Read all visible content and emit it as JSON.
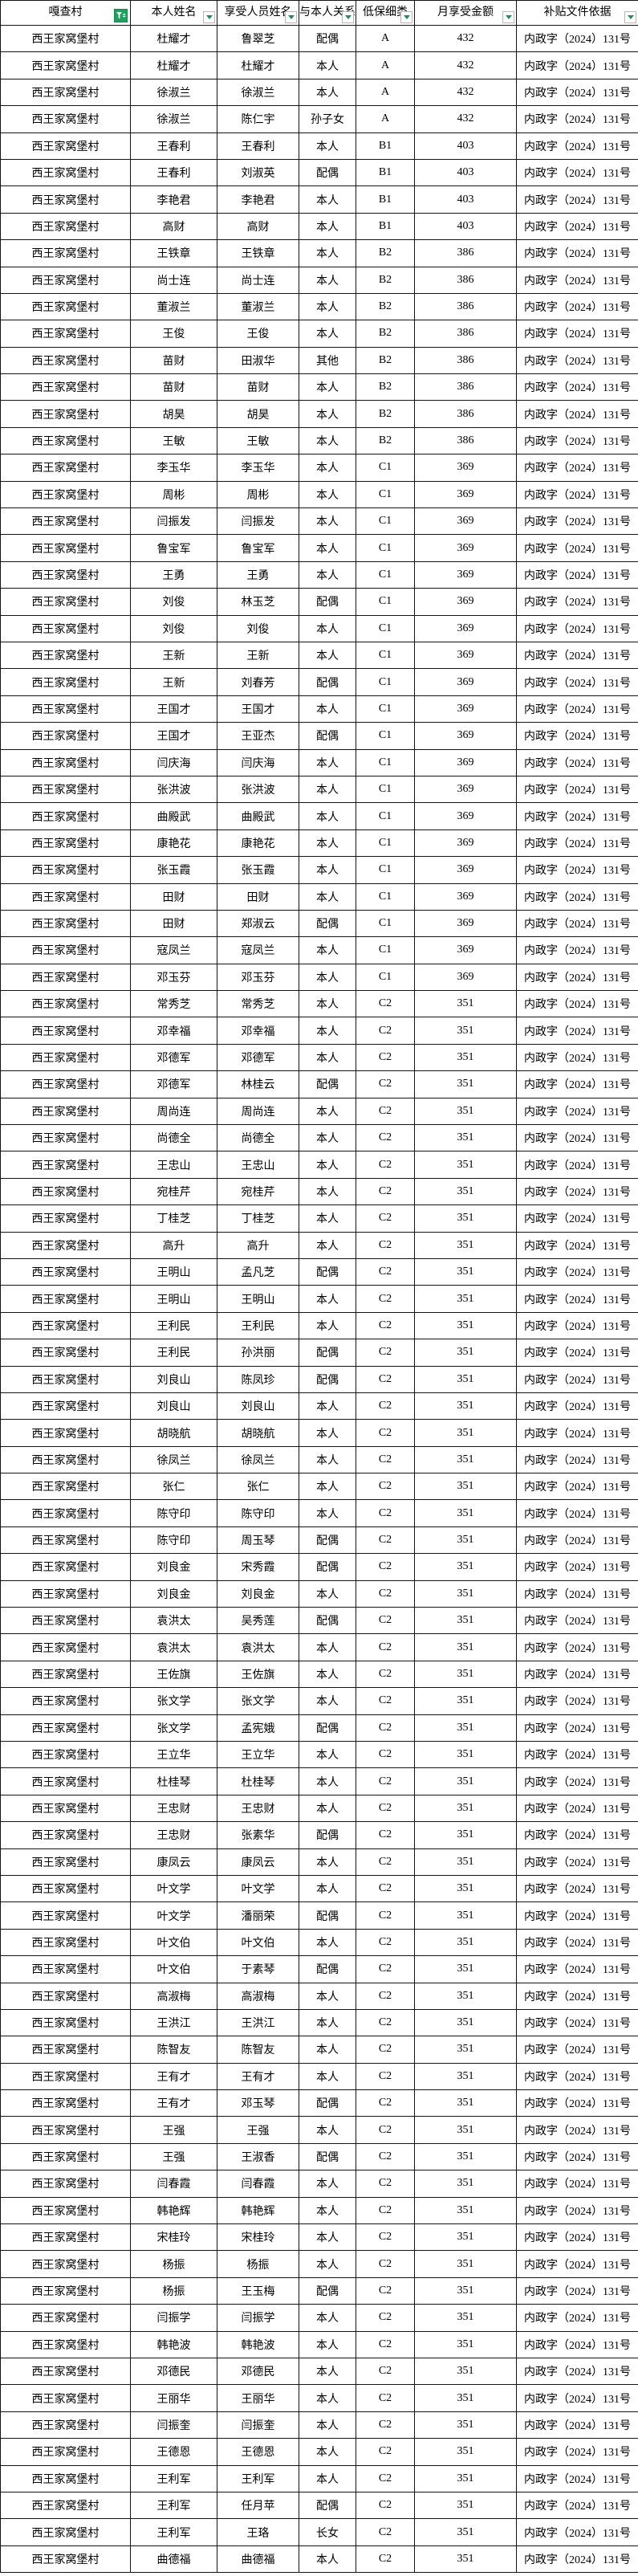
{
  "header": {
    "columns": [
      {
        "label": "嘎查村",
        "filter": "applied"
      },
      {
        "label": "本人姓名",
        "filter": "dropdown"
      },
      {
        "label": "享受人员姓名",
        "filter": "dropdown"
      },
      {
        "label": "与本人关系",
        "filter": "dropdown"
      },
      {
        "label": "低保细类",
        "filter": "dropdown"
      },
      {
        "label": "月享受金额",
        "filter": "dropdown"
      },
      {
        "label": "补贴文件依据",
        "filter": "dropdown"
      }
    ]
  },
  "icons": {
    "applied_filter": "funnel-icon",
    "dropdown": "chevron-down-icon"
  },
  "colors": {
    "filter_active_bg": "#1ea15e",
    "filter_arrow_green": "#1e8f57",
    "grid_line": "#141414",
    "cell_bg": "#ffffff",
    "text": "#000000"
  },
  "table": {
    "village": "西王家窝堡村",
    "doc_ref": "内政字（2024）131号",
    "rows": [
      [
        "杜耀才",
        "鲁翠芝",
        "配偶",
        "A",
        "432"
      ],
      [
        "杜耀才",
        "杜耀才",
        "本人",
        "A",
        "432"
      ],
      [
        "徐淑兰",
        "徐淑兰",
        "本人",
        "A",
        "432"
      ],
      [
        "徐淑兰",
        "陈仁宇",
        "孙子女",
        "A",
        "432"
      ],
      [
        "王春利",
        "王春利",
        "本人",
        "B1",
        "403"
      ],
      [
        "王春利",
        "刘淑英",
        "配偶",
        "B1",
        "403"
      ],
      [
        "李艳君",
        "李艳君",
        "本人",
        "B1",
        "403"
      ],
      [
        "高财",
        "高财",
        "本人",
        "B1",
        "403"
      ],
      [
        "王铁章",
        "王铁章",
        "本人",
        "B2",
        "386"
      ],
      [
        "尚士连",
        "尚士连",
        "本人",
        "B2",
        "386"
      ],
      [
        "董淑兰",
        "董淑兰",
        "本人",
        "B2",
        "386"
      ],
      [
        "王俊",
        "王俊",
        "本人",
        "B2",
        "386"
      ],
      [
        "苗财",
        "田淑华",
        "其他",
        "B2",
        "386"
      ],
      [
        "苗财",
        "苗财",
        "本人",
        "B2",
        "386"
      ],
      [
        "胡昊",
        "胡昊",
        "本人",
        "B2",
        "386"
      ],
      [
        "王敏",
        "王敏",
        "本人",
        "B2",
        "386"
      ],
      [
        "李玉华",
        "李玉华",
        "本人",
        "C1",
        "369"
      ],
      [
        "周彬",
        "周彬",
        "本人",
        "C1",
        "369"
      ],
      [
        "闫振发",
        "闫振发",
        "本人",
        "C1",
        "369"
      ],
      [
        "鲁宝军",
        "鲁宝军",
        "本人",
        "C1",
        "369"
      ],
      [
        "王勇",
        "王勇",
        "本人",
        "C1",
        "369"
      ],
      [
        "刘俊",
        "林玉芝",
        "配偶",
        "C1",
        "369"
      ],
      [
        "刘俊",
        "刘俊",
        "本人",
        "C1",
        "369"
      ],
      [
        "王新",
        "王新",
        "本人",
        "C1",
        "369"
      ],
      [
        "王新",
        "刘春芳",
        "配偶",
        "C1",
        "369"
      ],
      [
        "王国才",
        "王国才",
        "本人",
        "C1",
        "369"
      ],
      [
        "王国才",
        "王亚杰",
        "配偶",
        "C1",
        "369"
      ],
      [
        "闫庆海",
        "闫庆海",
        "本人",
        "C1",
        "369"
      ],
      [
        "张洪波",
        "张洪波",
        "本人",
        "C1",
        "369"
      ],
      [
        "曲殿武",
        "曲殿武",
        "本人",
        "C1",
        "369"
      ],
      [
        "康艳花",
        "康艳花",
        "本人",
        "C1",
        "369"
      ],
      [
        "张玉霞",
        "张玉霞",
        "本人",
        "C1",
        "369"
      ],
      [
        "田财",
        "田财",
        "本人",
        "C1",
        "369"
      ],
      [
        "田财",
        "郑淑云",
        "配偶",
        "C1",
        "369"
      ],
      [
        "寇凤兰",
        "寇凤兰",
        "本人",
        "C1",
        "369"
      ],
      [
        "邓玉芬",
        "邓玉芬",
        "本人",
        "C1",
        "369"
      ],
      [
        "常秀芝",
        "常秀芝",
        "本人",
        "C2",
        "351"
      ],
      [
        "邓幸福",
        "邓幸福",
        "本人",
        "C2",
        "351"
      ],
      [
        "邓德军",
        "邓德军",
        "本人",
        "C2",
        "351"
      ],
      [
        "邓德军",
        "林桂云",
        "配偶",
        "C2",
        "351"
      ],
      [
        "周尚连",
        "周尚连",
        "本人",
        "C2",
        "351"
      ],
      [
        "尚德全",
        "尚德全",
        "本人",
        "C2",
        "351"
      ],
      [
        "王忠山",
        "王忠山",
        "本人",
        "C2",
        "351"
      ],
      [
        "宛桂芹",
        "宛桂芹",
        "本人",
        "C2",
        "351"
      ],
      [
        "丁桂芝",
        "丁桂芝",
        "本人",
        "C2",
        "351"
      ],
      [
        "高升",
        "高升",
        "本人",
        "C2",
        "351"
      ],
      [
        "王明山",
        "孟凡芝",
        "配偶",
        "C2",
        "351"
      ],
      [
        "王明山",
        "王明山",
        "本人",
        "C2",
        "351"
      ],
      [
        "王利民",
        "王利民",
        "本人",
        "C2",
        "351"
      ],
      [
        "王利民",
        "孙洪丽",
        "配偶",
        "C2",
        "351"
      ],
      [
        "刘良山",
        "陈凤珍",
        "配偶",
        "C2",
        "351"
      ],
      [
        "刘良山",
        "刘良山",
        "本人",
        "C2",
        "351"
      ],
      [
        "胡晓航",
        "胡晓航",
        "本人",
        "C2",
        "351"
      ],
      [
        "徐凤兰",
        "徐凤兰",
        "本人",
        "C2",
        "351"
      ],
      [
        "张仁",
        "张仁",
        "本人",
        "C2",
        "351"
      ],
      [
        "陈守印",
        "陈守印",
        "本人",
        "C2",
        "351"
      ],
      [
        "陈守印",
        "周玉琴",
        "配偶",
        "C2",
        "351"
      ],
      [
        "刘良金",
        "宋秀霞",
        "配偶",
        "C2",
        "351"
      ],
      [
        "刘良金",
        "刘良金",
        "本人",
        "C2",
        "351"
      ],
      [
        "袁洪太",
        "吴秀莲",
        "配偶",
        "C2",
        "351"
      ],
      [
        "袁洪太",
        "袁洪太",
        "本人",
        "C2",
        "351"
      ],
      [
        "王佐旗",
        "王佐旗",
        "本人",
        "C2",
        "351"
      ],
      [
        "张文学",
        "张文学",
        "本人",
        "C2",
        "351"
      ],
      [
        "张文学",
        "孟宪娥",
        "配偶",
        "C2",
        "351"
      ],
      [
        "王立华",
        "王立华",
        "本人",
        "C2",
        "351"
      ],
      [
        "杜桂琴",
        "杜桂琴",
        "本人",
        "C2",
        "351"
      ],
      [
        "王忠财",
        "王忠财",
        "本人",
        "C2",
        "351"
      ],
      [
        "王忠财",
        "张素华",
        "配偶",
        "C2",
        "351"
      ],
      [
        "康凤云",
        "康凤云",
        "本人",
        "C2",
        "351"
      ],
      [
        "叶文学",
        "叶文学",
        "本人",
        "C2",
        "351"
      ],
      [
        "叶文学",
        "潘丽荣",
        "配偶",
        "C2",
        "351"
      ],
      [
        "叶文伯",
        "叶文伯",
        "本人",
        "C2",
        "351"
      ],
      [
        "叶文伯",
        "于素琴",
        "配偶",
        "C2",
        "351"
      ],
      [
        "高淑梅",
        "高淑梅",
        "本人",
        "C2",
        "351"
      ],
      [
        "王洪江",
        "王洪江",
        "本人",
        "C2",
        "351"
      ],
      [
        "陈智友",
        "陈智友",
        "本人",
        "C2",
        "351"
      ],
      [
        "王有才",
        "王有才",
        "本人",
        "C2",
        "351"
      ],
      [
        "王有才",
        "邓玉琴",
        "配偶",
        "C2",
        "351"
      ],
      [
        "王强",
        "王强",
        "本人",
        "C2",
        "351"
      ],
      [
        "王强",
        "王淑香",
        "配偶",
        "C2",
        "351"
      ],
      [
        "闫春霞",
        "闫春霞",
        "本人",
        "C2",
        "351"
      ],
      [
        "韩艳辉",
        "韩艳辉",
        "本人",
        "C2",
        "351"
      ],
      [
        "宋桂玲",
        "宋桂玲",
        "本人",
        "C2",
        "351"
      ],
      [
        "杨振",
        "杨振",
        "本人",
        "C2",
        "351"
      ],
      [
        "杨振",
        "王玉梅",
        "配偶",
        "C2",
        "351"
      ],
      [
        "闫振学",
        "闫振学",
        "本人",
        "C2",
        "351"
      ],
      [
        "韩艳波",
        "韩艳波",
        "本人",
        "C2",
        "351"
      ],
      [
        "邓德民",
        "邓德民",
        "本人",
        "C2",
        "351"
      ],
      [
        "王丽华",
        "王丽华",
        "本人",
        "C2",
        "351"
      ],
      [
        "闫振奎",
        "闫振奎",
        "本人",
        "C2",
        "351"
      ],
      [
        "王德恩",
        "王德恩",
        "本人",
        "C2",
        "351"
      ],
      [
        "王利军",
        "王利军",
        "本人",
        "C2",
        "351"
      ],
      [
        "王利军",
        "任月苹",
        "配偶",
        "C2",
        "351"
      ],
      [
        "王利军",
        "王珞",
        "长女",
        "C2",
        "351"
      ],
      [
        "曲德福",
        "曲德福",
        "本人",
        "C2",
        "351"
      ]
    ]
  }
}
